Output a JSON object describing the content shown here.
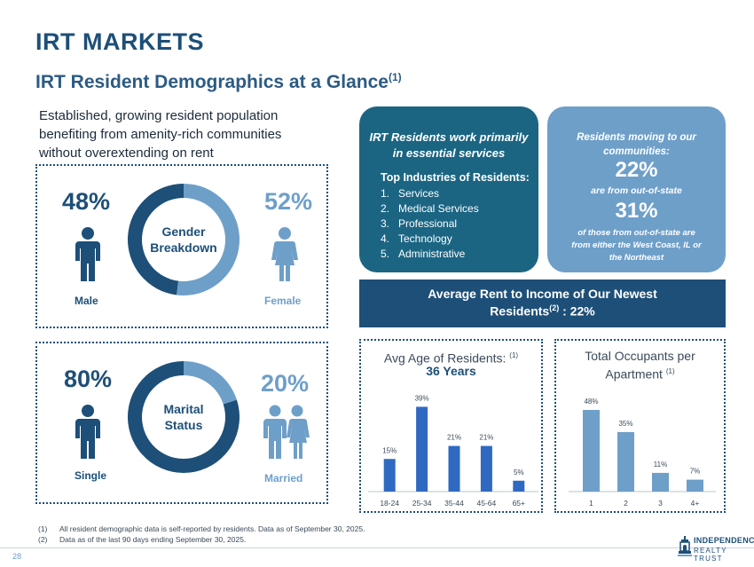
{
  "header": {
    "title": "IRT MARKETS",
    "subtitle": "IRT Resident Demographics at a Glance",
    "subtitle_note": "(1)"
  },
  "intro": {
    "line1": "Established, growing resident population",
    "line2": "benefiting from amenity-rich communities",
    "line3": "without overextending on rent"
  },
  "gender": {
    "title_line1": "Gender",
    "title_line2": "Breakdown",
    "left_pct": "48%",
    "left_label": "Male",
    "right_pct": "52%",
    "right_label": "Female",
    "left_value": 48,
    "right_value": 52,
    "left_color": "#1d4f78",
    "right_color": "#6e9fc9"
  },
  "marital": {
    "title_line1": "Marital",
    "title_line2": "Status",
    "left_pct": "80%",
    "left_label": "Single",
    "right_pct": "20%",
    "right_label": "Married",
    "left_value": 80,
    "right_value": 20,
    "left_color": "#1d4f78",
    "right_color": "#6e9fc9"
  },
  "industries": {
    "heading_line1": "IRT Residents work primarily",
    "heading_line2": "in essential services",
    "subheading": "Top Industries of Residents:",
    "items": [
      {
        "num": "1.",
        "label": "Services"
      },
      {
        "num": "2.",
        "label": "Medical Services"
      },
      {
        "num": "3.",
        "label": "Professional"
      },
      {
        "num": "4.",
        "label": "Technology"
      },
      {
        "num": "5.",
        "label": "Administrative"
      }
    ]
  },
  "moving": {
    "heading_line1": "Residents moving to our",
    "heading_line2": "communities:",
    "pct1": "22%",
    "text1": "are from out-of-state",
    "pct2": "31%",
    "text2_line1": "of those from out-of-state are",
    "text2_line2": "from either the West Coast, IL or",
    "text2_line3": "the Northeast"
  },
  "rent": {
    "line1": "Average Rent to Income of Our Newest",
    "line2_prefix": "Residents",
    "line2_note": "(2)",
    "line2_suffix": " :  22%"
  },
  "chart_data": [
    {
      "type": "bar",
      "title": "Avg Age of Residents:",
      "title_note": "(1)",
      "subtitle": "36 Years",
      "categories": [
        "18-24",
        "25-34",
        "35-44",
        "45-64",
        "65+"
      ],
      "values": [
        15,
        39,
        21,
        21,
        5
      ],
      "labels": [
        "15%",
        "39%",
        "21%",
        "21%",
        "5%"
      ],
      "ylim": [
        0,
        40
      ],
      "color": "#2f69c2"
    },
    {
      "type": "bar",
      "title_line1": "Total Occupants per",
      "title_line2": "Apartment",
      "title_note": "(1)",
      "categories": [
        "1",
        "2",
        "3",
        "4+"
      ],
      "values": [
        48,
        35,
        11,
        7
      ],
      "labels": [
        "48%",
        "35%",
        "11%",
        "7%"
      ],
      "ylim": [
        0,
        48
      ],
      "color": "#6e9fc9"
    }
  ],
  "footnotes": [
    {
      "num": "(1)",
      "text": "All resident demographic data is self-reported by residents. Data as of September 30, 2025."
    },
    {
      "num": "(2)",
      "text": "Data as of the last 90 days ending September 30, 2025."
    }
  ],
  "footer": {
    "page_number": "28",
    "logo_line1": "INDEPENDENCE",
    "logo_line2": "REALTY TRUST"
  }
}
